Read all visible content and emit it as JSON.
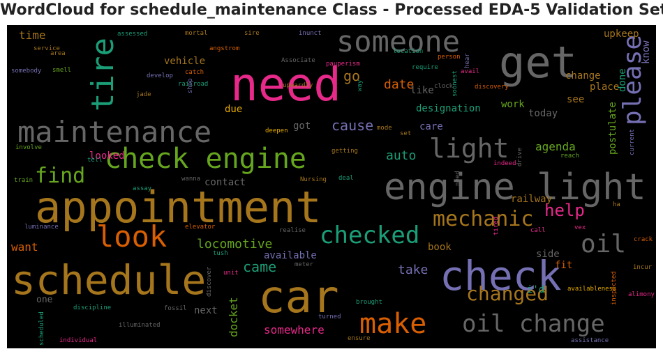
{
  "title": "WordCloud for schedule_maintenance Class - Processed EDA-5 Validation Set",
  "colors": {
    "background": "#000000",
    "gray": "#666666",
    "gold": "#a6761d",
    "orange": "#d95f02",
    "green": "#66a61e",
    "teal": "#1b9e77",
    "purple": "#7570b3",
    "pink": "#e7298a",
    "yellow": "#e6ab02"
  },
  "words": [
    {
      "text": "appointment",
      "color": "gold"
    },
    {
      "text": "schedule",
      "color": "gold"
    },
    {
      "text": "car",
      "color": "gold"
    },
    {
      "text": "need",
      "color": "pink"
    },
    {
      "text": "get",
      "color": "gray"
    },
    {
      "text": "check",
      "color": "purple"
    },
    {
      "text": "engine light",
      "color": "gray"
    },
    {
      "text": "maintenance",
      "color": "gray"
    },
    {
      "text": "check engine",
      "color": "green"
    },
    {
      "text": "someone",
      "color": "gray"
    },
    {
      "text": "tire",
      "color": "teal"
    },
    {
      "text": "look",
      "color": "orange"
    },
    {
      "text": "make",
      "color": "orange"
    },
    {
      "text": "oil change",
      "color": "gray"
    },
    {
      "text": "checked",
      "color": "teal"
    },
    {
      "text": "light",
      "color": "gray"
    },
    {
      "text": "please",
      "color": "purple"
    },
    {
      "text": "oil",
      "color": "gray"
    },
    {
      "text": "mechanic",
      "color": "gold"
    },
    {
      "text": "changed",
      "color": "gold"
    },
    {
      "text": "find",
      "color": "green"
    },
    {
      "text": "help",
      "color": "pink"
    },
    {
      "text": "locomotive",
      "color": "green"
    },
    {
      "text": "go",
      "color": "gold"
    },
    {
      "text": "cause",
      "color": "purple"
    },
    {
      "text": "came",
      "color": "teal"
    },
    {
      "text": "take",
      "color": "purple"
    },
    {
      "text": "auto",
      "color": "teal"
    },
    {
      "text": "agenda",
      "color": "green"
    },
    {
      "text": "date",
      "color": "orange"
    },
    {
      "text": "want",
      "color": "orange"
    },
    {
      "text": "docket",
      "color": "green"
    },
    {
      "text": "somewhere",
      "color": "pink"
    },
    {
      "text": "time",
      "color": "gold"
    },
    {
      "text": "vehicle",
      "color": "gold"
    },
    {
      "text": "change",
      "color": "gold"
    },
    {
      "text": "designation",
      "color": "teal"
    },
    {
      "text": "contact",
      "color": "gray"
    },
    {
      "text": "railway",
      "color": "gold"
    },
    {
      "text": "postulate",
      "color": "green"
    },
    {
      "text": "upkeep",
      "color": "gold"
    },
    {
      "text": "know",
      "color": "purple"
    },
    {
      "text": "done",
      "color": "teal"
    },
    {
      "text": "place",
      "color": "gold"
    },
    {
      "text": "see",
      "color": "gold"
    },
    {
      "text": "work",
      "color": "green"
    },
    {
      "text": "today",
      "color": "gray"
    },
    {
      "text": "care",
      "color": "purple"
    },
    {
      "text": "like",
      "color": "gray"
    },
    {
      "text": "got",
      "color": "gray"
    },
    {
      "text": "due",
      "color": "yellow"
    },
    {
      "text": "looked",
      "color": "pink"
    },
    {
      "text": "available",
      "color": "purple"
    },
    {
      "text": "book",
      "color": "gold"
    },
    {
      "text": "side",
      "color": "gray"
    },
    {
      "text": "fit",
      "color": "orange"
    },
    {
      "text": "i'd",
      "color": "teal"
    },
    {
      "text": "next",
      "color": "gray"
    },
    {
      "text": "one",
      "color": "gray"
    },
    {
      "text": "assessed",
      "color": "teal"
    },
    {
      "text": "mortal",
      "color": "gold"
    },
    {
      "text": "sire",
      "color": "gold"
    },
    {
      "text": "inunct",
      "color": "purple"
    },
    {
      "text": "service",
      "color": "gold"
    },
    {
      "text": "angstrom",
      "color": "orange"
    },
    {
      "text": "area",
      "color": "gold"
    },
    {
      "text": "somebody",
      "color": "purple"
    },
    {
      "text": "smell",
      "color": "green"
    },
    {
      "text": "Associate",
      "color": "gray"
    },
    {
      "text": "location",
      "color": "teal"
    },
    {
      "text": "person",
      "color": "orange"
    },
    {
      "text": "hear",
      "color": "purple"
    },
    {
      "text": "pauperism",
      "color": "pink"
    },
    {
      "text": "require",
      "color": "teal"
    },
    {
      "text": "avail",
      "color": "pink"
    },
    {
      "text": "develop",
      "color": "purple"
    },
    {
      "text": "catch",
      "color": "orange"
    },
    {
      "text": "railroad",
      "color": "teal"
    },
    {
      "text": "jade",
      "color": "gold"
    },
    {
      "text": "shop",
      "color": "purple"
    },
    {
      "text": "upwardly",
      "color": "gold"
    },
    {
      "text": "way",
      "color": "teal"
    },
    {
      "text": "clock",
      "color": "gray"
    },
    {
      "text": "discovery",
      "color": "orange"
    },
    {
      "text": "soonest",
      "color": "teal"
    },
    {
      "text": "deepen",
      "color": "yellow"
    },
    {
      "text": "mode",
      "color": "gold"
    },
    {
      "text": "set",
      "color": "gold"
    },
    {
      "text": "current",
      "color": "purple"
    },
    {
      "text": "involve",
      "color": "green"
    },
    {
      "text": "getting",
      "color": "gold"
    },
    {
      "text": "tell",
      "color": "teal"
    },
    {
      "text": "indeed",
      "color": "pink"
    },
    {
      "text": "reach",
      "color": "green"
    },
    {
      "text": "drive",
      "color": "gray"
    },
    {
      "text": "train",
      "color": "green"
    },
    {
      "text": "wanna",
      "color": "gray"
    },
    {
      "text": "Nursing",
      "color": "gold"
    },
    {
      "text": "deal",
      "color": "teal"
    },
    {
      "text": "need",
      "color": "gray"
    },
    {
      "text": "assay",
      "color": "teal"
    },
    {
      "text": "ha",
      "color": "gold"
    },
    {
      "text": "luminance",
      "color": "purple"
    },
    {
      "text": "elevator",
      "color": "orange"
    },
    {
      "text": "realise",
      "color": "gray"
    },
    {
      "text": "call",
      "color": "pink"
    },
    {
      "text": "vex",
      "color": "pink"
    },
    {
      "text": "tired",
      "color": "pink"
    },
    {
      "text": "crack",
      "color": "orange"
    },
    {
      "text": "tush",
      "color": "teal"
    },
    {
      "text": "meter",
      "color": "gray"
    },
    {
      "text": "unit",
      "color": "pink"
    },
    {
      "text": "incur",
      "color": "gold"
    },
    {
      "text": "availableness",
      "color": "yellow"
    },
    {
      "text": "alimony",
      "color": "pink"
    },
    {
      "text": "discover",
      "color": "gray"
    },
    {
      "text": "brought",
      "color": "teal"
    },
    {
      "text": "discipline",
      "color": "teal"
    },
    {
      "text": "fossil",
      "color": "gray"
    },
    {
      "text": "inspected",
      "color": "orange"
    },
    {
      "text": "turned",
      "color": "purple"
    },
    {
      "text": "scheduled",
      "color": "teal"
    },
    {
      "text": "illuminated",
      "color": "gray"
    },
    {
      "text": "individual",
      "color": "pink"
    },
    {
      "text": "ensure",
      "color": "gold"
    },
    {
      "text": "assistance",
      "color": "purple"
    }
  ]
}
